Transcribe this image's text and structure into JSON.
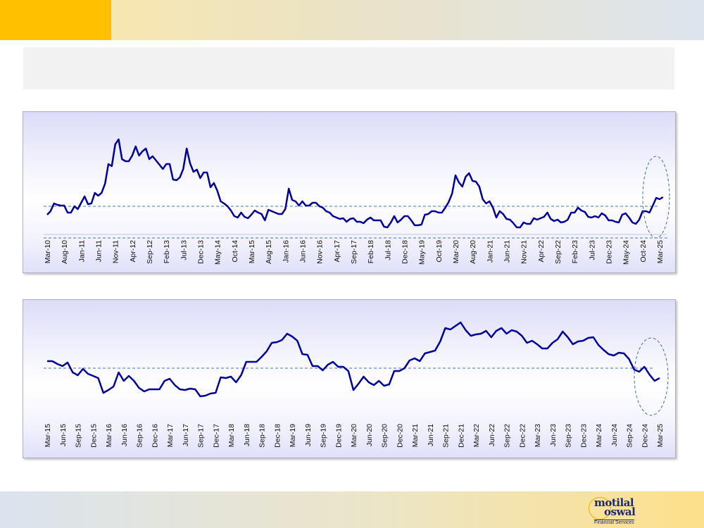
{
  "colors": {
    "accent_gold": "#ffc000",
    "line": "#000099",
    "dashed": "#4a72b0"
  },
  "logo": {
    "line1": "motilal",
    "line2": "oswal",
    "line3": "Financial Services"
  },
  "chart_data": [
    {
      "type": "line",
      "title": "",
      "xlabel": "",
      "ylabel": "",
      "x_start": "Mar-10",
      "x_end": "Apr-25",
      "frequency": "monthly",
      "tick_labels": [
        "Mar-10",
        "Aug-10",
        "Jan-11",
        "Jun-11",
        "Nov-11",
        "Apr-12",
        "Sep-12",
        "Feb-13",
        "Jul-13",
        "Dec-13",
        "May-14",
        "Oct-14",
        "Mar-15",
        "Aug-15",
        "Jan-16",
        "Jun-16",
        "Nov-16",
        "Apr-17",
        "Sep-17",
        "Feb-18",
        "Jul-18",
        "Dec-18",
        "May-19",
        "Oct-19",
        "Mar-20",
        "Aug-20",
        "Jan-21",
        "Jun-21",
        "Nov-21",
        "Apr-22",
        "Sep-22",
        "Feb-23",
        "Jul-23",
        "Dec-23",
        "May-24",
        "Oct-24",
        "Mar-25"
      ],
      "tick_every_months": 5,
      "values": [
        35,
        40,
        51,
        49,
        48,
        48,
        38,
        38,
        47,
        43,
        52,
        61,
        50,
        51,
        66,
        62,
        66,
        79,
        107,
        104,
        135,
        142,
        114,
        111,
        111,
        119,
        132,
        119,
        125,
        129,
        114,
        118,
        112,
        106,
        100,
        107,
        107,
        85,
        84,
        88,
        100,
        129,
        108,
        96,
        99,
        87,
        95,
        95,
        74,
        80,
        69,
        54,
        51,
        47,
        41,
        33,
        31,
        38,
        32,
        30,
        35,
        41,
        38,
        36,
        27,
        42,
        40,
        38,
        36,
        36,
        43,
        72,
        56,
        54,
        48,
        54,
        48,
        48,
        52,
        52,
        47,
        45,
        40,
        38,
        33,
        31,
        29,
        30,
        25,
        29,
        30,
        25,
        25,
        23,
        28,
        31,
        27,
        27,
        27,
        18,
        17,
        24,
        33,
        24,
        28,
        33,
        33,
        27,
        20,
        20,
        21,
        35,
        36,
        40,
        40,
        38,
        38,
        45,
        53,
        65,
        91,
        81,
        75,
        89,
        94,
        83,
        82,
        75,
        57,
        51,
        54,
        45,
        31,
        40,
        36,
        29,
        28,
        23,
        17,
        17,
        24,
        22,
        22,
        30,
        28,
        30,
        32,
        38,
        29,
        26,
        28,
        24,
        25,
        28,
        38,
        38,
        45,
        41,
        39,
        32,
        31,
        33,
        31,
        37,
        34,
        27,
        27,
        25,
        24,
        35,
        37,
        31,
        24,
        22,
        28,
        40,
        40,
        38,
        48,
        59,
        57,
        60
      ],
      "reference_lines": [
        {
          "name": "average",
          "value": 47,
          "style": "dashed"
        },
        {
          "name": "lower",
          "value": 2,
          "style": "dashed"
        }
      ],
      "highlight": "latest period circled",
      "ylim": [
        0,
        150
      ],
      "grid": false,
      "legend": "none"
    },
    {
      "type": "line",
      "title": "",
      "xlabel": "",
      "ylabel": "",
      "x_start": "Mar-15",
      "x_end": "Mar-25",
      "frequency": "monthly",
      "tick_labels": [
        "Mar-15",
        "Jun-15",
        "Sep-15",
        "Dec-15",
        "Mar-16",
        "Jun-16",
        "Sep-16",
        "Dec-16",
        "Mar-17",
        "Jun-17",
        "Sep-17",
        "Dec-17",
        "Mar-18",
        "Jun-18",
        "Sep-18",
        "Dec-18",
        "Mar-19",
        "Jun-19",
        "Sep-19",
        "Dec-19",
        "Mar-20",
        "Jun-20",
        "Sep-20",
        "Dec-20",
        "Mar-21",
        "Jun-21",
        "Sep-21",
        "Dec-21",
        "Mar-22",
        "Jun-22",
        "Sep-22",
        "Dec-22",
        "Mar-23",
        "Jun-23",
        "Sep-23",
        "Dec-23",
        "Mar-24",
        "Jun-24",
        "Sep-24",
        "Dec-24",
        "Mar-25"
      ],
      "tick_every_months": 3,
      "values": [
        87,
        87,
        83,
        80,
        85,
        71,
        67,
        76,
        69,
        66,
        63,
        42,
        46,
        51,
        71,
        59,
        66,
        59,
        49,
        44,
        47,
        47,
        47,
        59,
        62,
        53,
        47,
        46,
        48,
        47,
        37,
        38,
        41,
        42,
        64,
        63,
        65,
        57,
        67,
        86,
        86,
        86,
        93,
        101,
        113,
        114,
        117,
        126,
        122,
        116,
        97,
        96,
        80,
        80,
        74,
        82,
        86,
        79,
        79,
        73,
        46,
        55,
        65,
        57,
        53,
        59,
        52,
        54,
        73,
        73,
        77,
        88,
        91,
        87,
        98,
        100,
        102,
        115,
        134,
        132,
        137,
        142,
        131,
        123,
        125,
        126,
        130,
        121,
        130,
        134,
        126,
        131,
        129,
        123,
        113,
        116,
        111,
        105,
        105,
        113,
        118,
        129,
        121,
        111,
        115,
        116,
        120,
        121,
        110,
        103,
        97,
        95,
        99,
        98,
        90,
        75,
        72,
        79,
        68,
        59,
        63
      ],
      "reference_lines": [
        {
          "name": "average",
          "value": 77,
          "style": "dashed"
        }
      ],
      "highlight": "latest period circled",
      "ylim": [
        0,
        150
      ],
      "grid": false,
      "legend": "none"
    }
  ]
}
